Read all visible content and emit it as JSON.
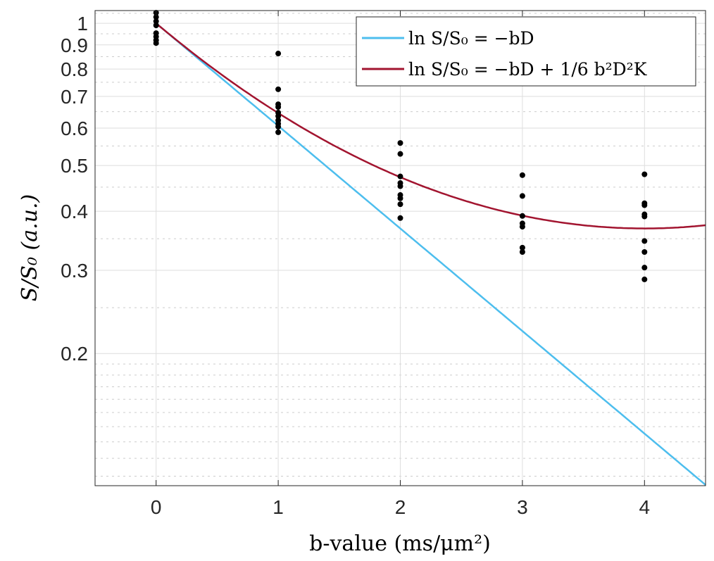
{
  "chart_data": {
    "type": "scatter",
    "xlabel": "b-value (ms/μm²)",
    "ylabel": "S/S₀ (a.u.)",
    "xlim": [
      -0.5,
      4.5
    ],
    "ylim": [
      0.105,
      1.064
    ],
    "yscale": "log",
    "grid": true,
    "legend_placement": "top-right",
    "xticks": [
      "0",
      "1",
      "2",
      "3",
      "4"
    ],
    "yticks": [
      "0.2",
      "0.3",
      "0.4",
      "0.5",
      "0.6",
      "0.7",
      "0.8",
      "0.9",
      "1"
    ],
    "series": [
      {
        "name": "ln S/S₀ = −bD",
        "type": "line",
        "color": "#4DBEEE",
        "D": 0.5
      },
      {
        "name": "ln S/S₀ = −bD + 1/6 b²D²K",
        "type": "line",
        "color": "#A2142F",
        "D": 0.5,
        "K": 1.5
      },
      {
        "type": "scatter",
        "color": "#000000",
        "points": [
          [
            0,
            1.053
          ],
          [
            0,
            1.031
          ],
          [
            0,
            1.01
          ],
          [
            0,
            0.99
          ],
          [
            0,
            0.953
          ],
          [
            0,
            0.937
          ],
          [
            0,
            0.921
          ],
          [
            0,
            0.908
          ],
          [
            1,
            0.863
          ],
          [
            1,
            0.725
          ],
          [
            1,
            0.674
          ],
          [
            1,
            0.665
          ],
          [
            1,
            0.647
          ],
          [
            1,
            0.636
          ],
          [
            1,
            0.623
          ],
          [
            1,
            0.613
          ],
          [
            1,
            0.604
          ],
          [
            1,
            0.588
          ],
          [
            2,
            0.558
          ],
          [
            2,
            0.529
          ],
          [
            2,
            0.474
          ],
          [
            2,
            0.459
          ],
          [
            2,
            0.452
          ],
          [
            2,
            0.433
          ],
          [
            2,
            0.426
          ],
          [
            2,
            0.414
          ],
          [
            2,
            0.387
          ],
          [
            3,
            0.477
          ],
          [
            3,
            0.431
          ],
          [
            3,
            0.391
          ],
          [
            3,
            0.377
          ],
          [
            3,
            0.371
          ],
          [
            3,
            0.335
          ],
          [
            3,
            0.328
          ],
          [
            4,
            0.479
          ],
          [
            4,
            0.416
          ],
          [
            4,
            0.412
          ],
          [
            4,
            0.394
          ],
          [
            4,
            0.39
          ],
          [
            4,
            0.346
          ],
          [
            4,
            0.328
          ],
          [
            4,
            0.304
          ],
          [
            4,
            0.287
          ]
        ]
      }
    ]
  }
}
